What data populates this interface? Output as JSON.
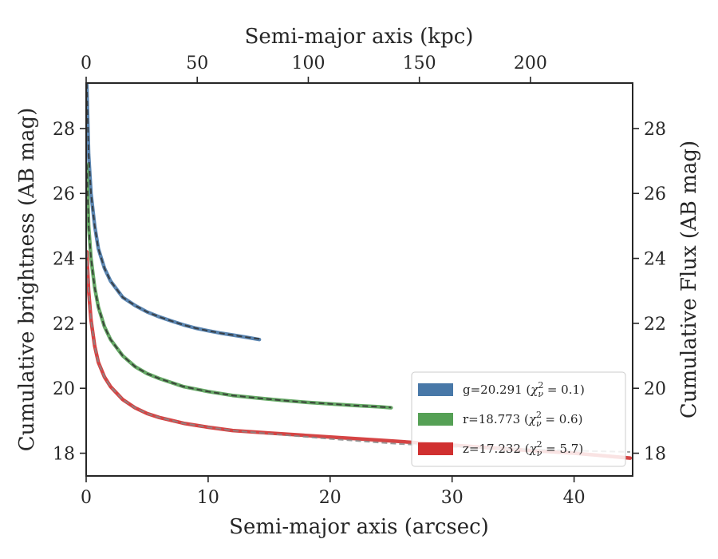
{
  "chart_data": {
    "type": "line",
    "title": "",
    "xlabel": "Semi-major axis (arcsec)",
    "ylabel": "Cumulative brightness (AB mag)",
    "x2label": "Semi-major axis (kpc)",
    "y2label": "Cumulative Flux (AB mag)",
    "xlim": [
      0,
      44.8
    ],
    "ylim": [
      29.4,
      17.3
    ],
    "x2lim": [
      0,
      246
    ],
    "y_inverted": true,
    "xticks": [
      0,
      10,
      20,
      30,
      40
    ],
    "yticks": [
      18,
      20,
      22,
      24,
      26,
      28
    ],
    "x2ticks": [
      0,
      50,
      100,
      150,
      200
    ],
    "grid": false,
    "legend_position": "lower-right",
    "series": [
      {
        "name": "g=20.291 (χ²_ν = 0.1)",
        "legend": {
          "main": "g=20.291 (",
          "chi": "χ",
          "sup": "2",
          "sub": "ν",
          "eq": " = 0.1)"
        },
        "color": "#4878a8",
        "x": [
          0.05,
          0.2,
          0.4,
          0.7,
          1.0,
          1.5,
          2.0,
          3.0,
          4.0,
          5.0,
          6.0,
          7.0,
          8.0,
          9.0,
          10.0,
          11.0,
          12.0,
          13.0,
          14.2
        ],
        "y": [
          29.4,
          27.2,
          26.0,
          25.0,
          24.3,
          23.7,
          23.3,
          22.8,
          22.55,
          22.35,
          22.2,
          22.07,
          21.95,
          21.85,
          21.77,
          21.7,
          21.64,
          21.58,
          21.5
        ],
        "model_y": [
          29.4,
          27.2,
          26.0,
          25.0,
          24.3,
          23.7,
          23.3,
          22.8,
          22.55,
          22.35,
          22.2,
          22.07,
          21.95,
          21.85,
          21.77,
          21.7,
          21.64,
          21.58,
          21.52
        ]
      },
      {
        "name": "r=18.773 (χ²_ν = 0.6)",
        "legend": {
          "main": "r=18.773 (",
          "chi": "χ",
          "sup": "2",
          "sub": "ν",
          "eq": " = 0.6)"
        },
        "color": "#55a055",
        "x": [
          0.05,
          0.2,
          0.4,
          0.7,
          1.0,
          1.5,
          2.0,
          3.0,
          4.0,
          5.0,
          6.0,
          8.0,
          10.0,
          12.0,
          14.0,
          16.0,
          18.0,
          20.0,
          22.0,
          24.0,
          25.0
        ],
        "y": [
          26.9,
          25.0,
          24.0,
          23.1,
          22.5,
          21.9,
          21.5,
          21.0,
          20.67,
          20.45,
          20.3,
          20.05,
          19.9,
          19.78,
          19.7,
          19.63,
          19.57,
          19.52,
          19.47,
          19.43,
          19.4
        ],
        "model_y": [
          26.9,
          25.0,
          24.0,
          23.1,
          22.5,
          21.9,
          21.5,
          21.0,
          20.67,
          20.45,
          20.3,
          20.05,
          19.9,
          19.78,
          19.7,
          19.63,
          19.57,
          19.52,
          19.47,
          19.43,
          19.41
        ]
      },
      {
        "name": "z=17.232 (χ²_ν = 5.7)",
        "legend": {
          "main": "z=17.232 (",
          "chi": "χ",
          "sup": "2",
          "sub": "ν",
          "eq": " = 5.7)"
        },
        "color": "#d03030",
        "x": [
          0.05,
          0.2,
          0.4,
          0.7,
          1.0,
          1.5,
          2.0,
          3.0,
          4.0,
          5.0,
          6.0,
          8.0,
          10.0,
          12.0,
          15.0,
          20.0,
          25.0,
          30.0,
          35.0,
          40.0,
          44.6
        ],
        "y": [
          24.2,
          23.0,
          22.1,
          21.3,
          20.8,
          20.35,
          20.05,
          19.65,
          19.4,
          19.22,
          19.1,
          18.92,
          18.8,
          18.7,
          18.62,
          18.5,
          18.38,
          18.25,
          18.12,
          18.0,
          17.85
        ],
        "model_y": [
          24.2,
          23.0,
          22.1,
          21.3,
          20.8,
          20.35,
          20.05,
          19.65,
          19.4,
          19.22,
          19.1,
          18.92,
          18.8,
          18.7,
          18.6,
          18.44,
          18.3,
          18.2,
          18.13,
          18.08,
          18.04
        ]
      }
    ]
  }
}
